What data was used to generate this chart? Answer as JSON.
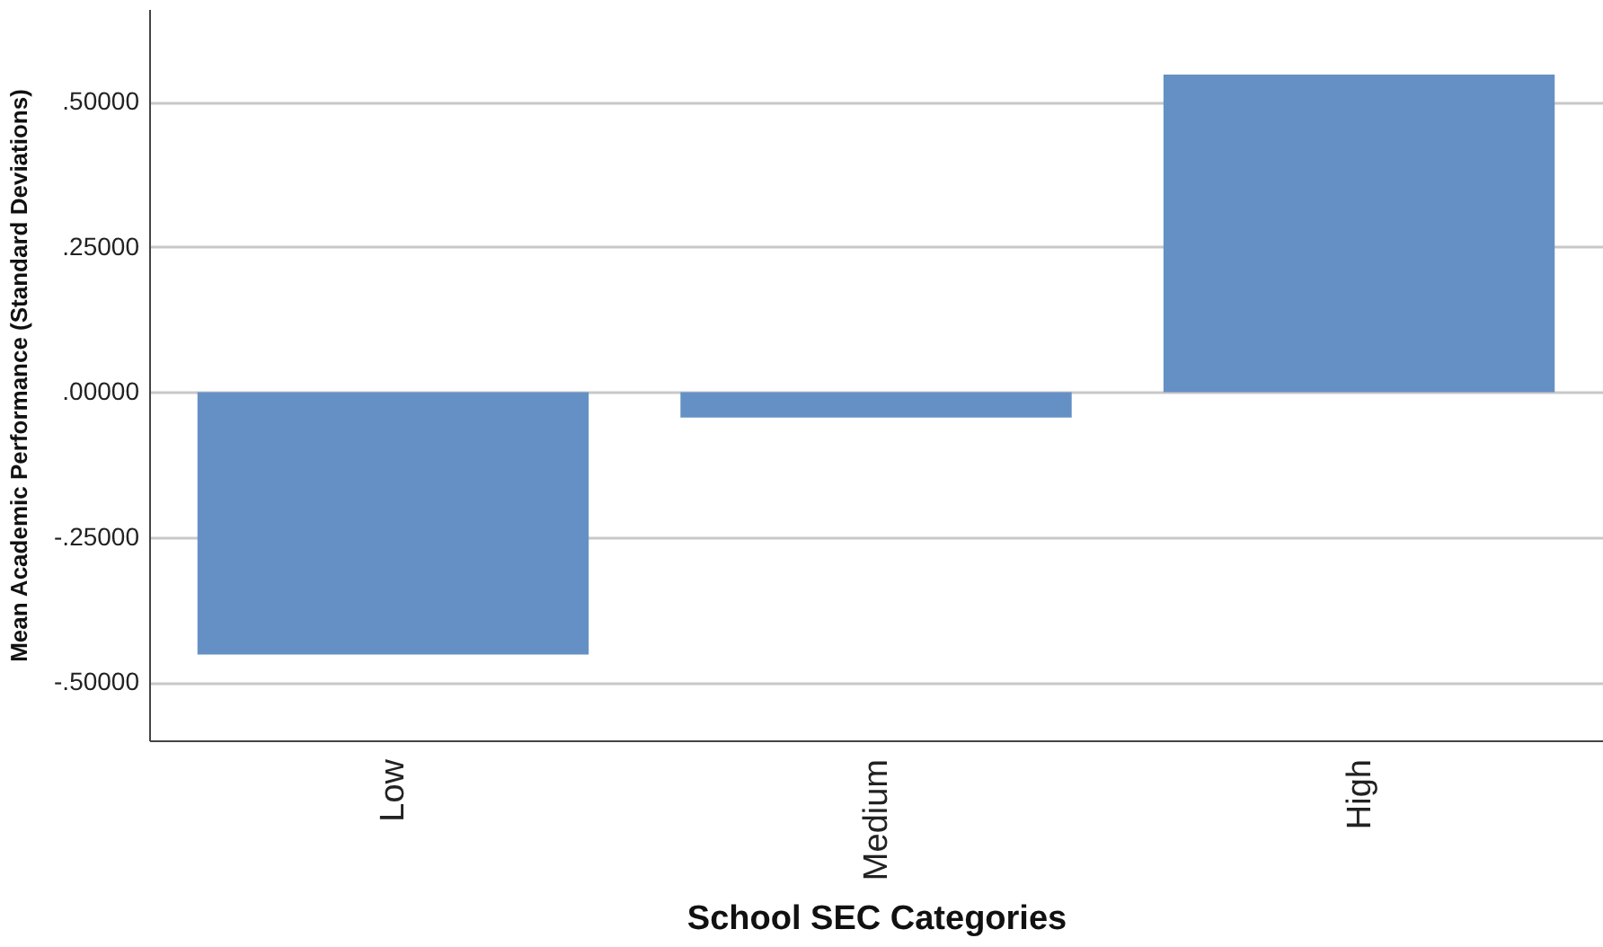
{
  "chart_data": {
    "type": "bar",
    "xlabel": "School SEC Categories",
    "ylabel": "Mean Academic Performance (Standard Deviations)",
    "categories": [
      "Low",
      "Medium",
      "High"
    ],
    "values": [
      -0.452,
      -0.044,
      0.547
    ],
    "color": "#6590c5",
    "ylim": [
      -0.6,
      0.66
    ],
    "yticks": [
      {
        "value": -0.5,
        "label": "-.50000"
      },
      {
        "value": -0.25,
        "label": "-.25000"
      },
      {
        "value": 0,
        "label": ".00000"
      },
      {
        "value": 0.25,
        "label": ".25000"
      },
      {
        "value": 0.5,
        "label": ".50000"
      }
    ],
    "grid": "y"
  }
}
